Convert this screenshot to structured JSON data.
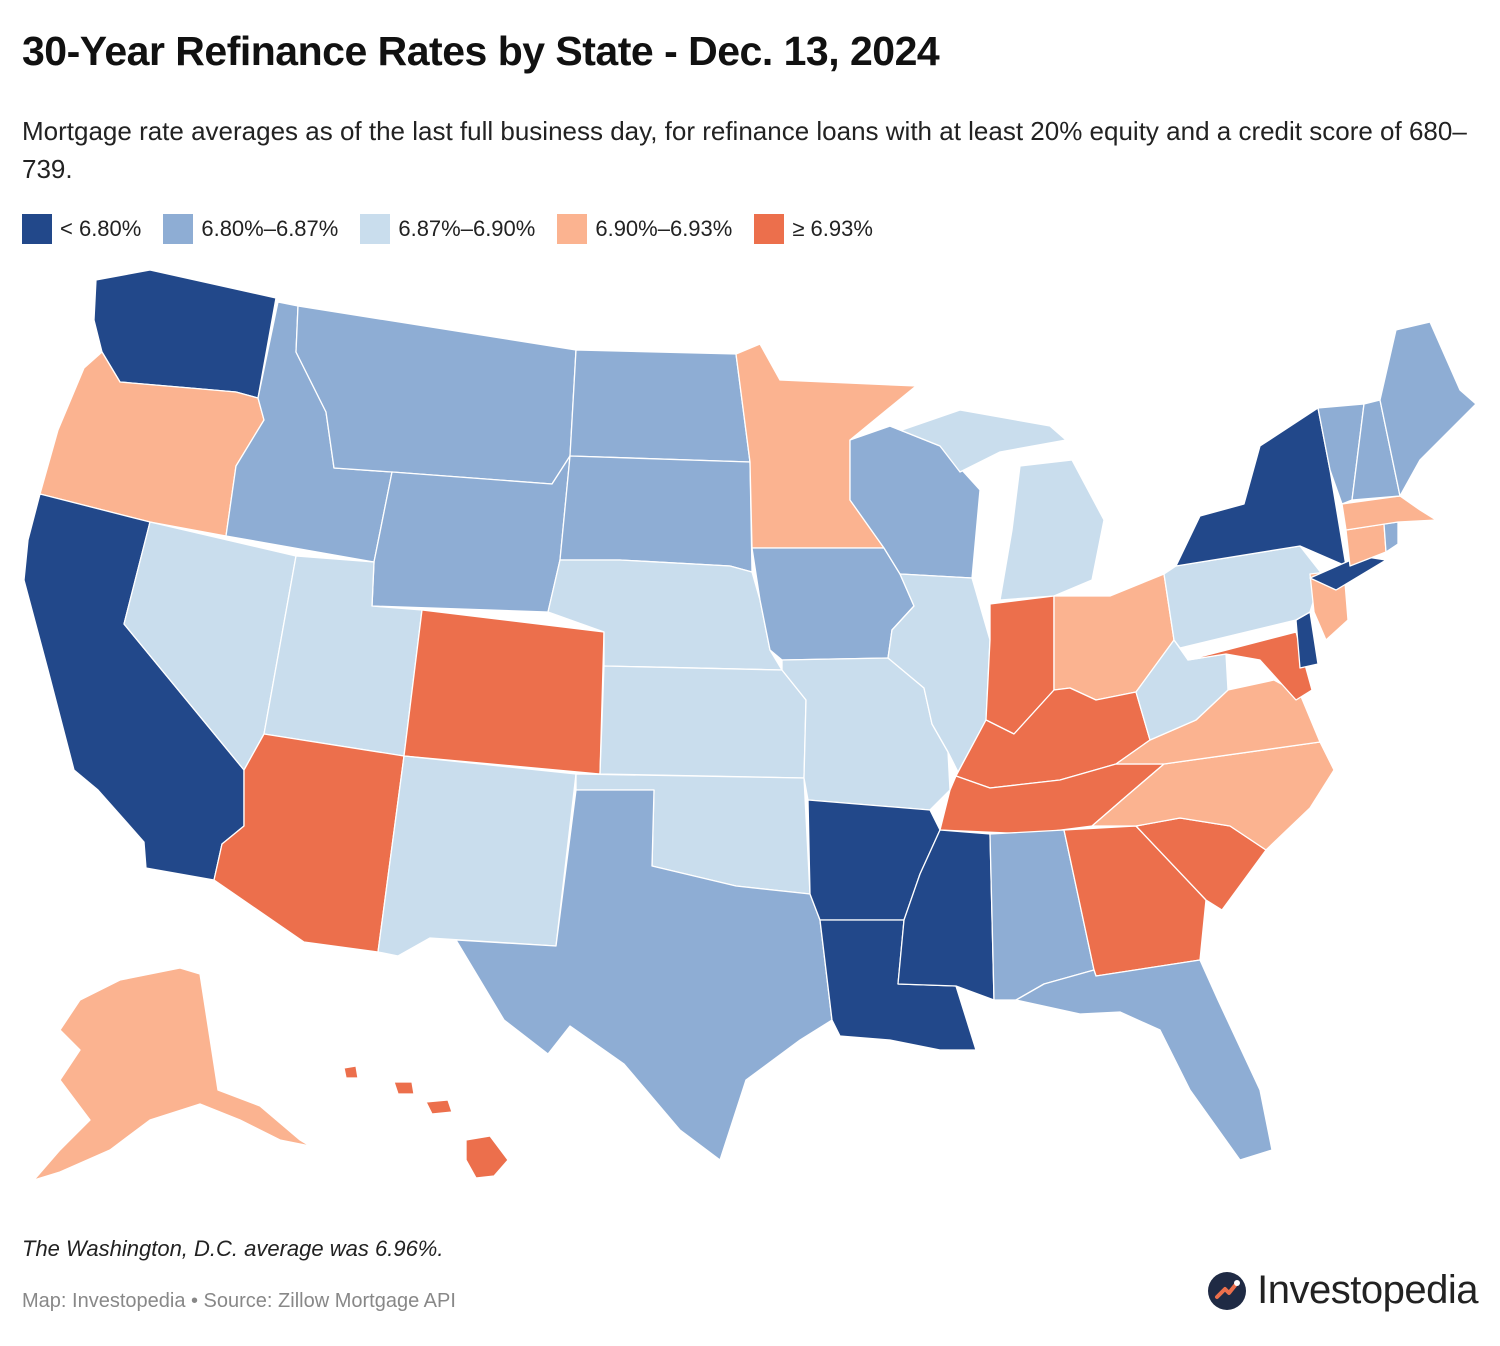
{
  "header": {
    "title": "30-Year Refinance Rates by State - Dec. 13, 2024",
    "subtitle": "Mortgage rate averages as of the last full business day, for refinance loans with at least 20% equity and a credit score of 680–739."
  },
  "legend": [
    {
      "label": "< 6.80%",
      "color": "#22488a"
    },
    {
      "label": "6.80%–6.87%",
      "color": "#8eadd4"
    },
    {
      "label": "6.87%–6.90%",
      "color": "#c9dded"
    },
    {
      "label": "6.90%–6.93%",
      "color": "#fbb390"
    },
    {
      "label": "≥ 6.93%",
      "color": "#ec6f4c"
    }
  ],
  "footnote": "The Washington, D.C. average was 6.96%.",
  "credit": "Map: Investopedia • Source: Zillow Mortgage API",
  "brand": {
    "name": "Investopedia",
    "icon": "investopedia-logo-icon"
  },
  "map_data": {
    "type": "choropleth",
    "region": "United States",
    "states": [
      {
        "id": "WA",
        "bin": 0
      },
      {
        "id": "OR",
        "bin": 3
      },
      {
        "id": "CA",
        "bin": 0
      },
      {
        "id": "NV",
        "bin": 2
      },
      {
        "id": "ID",
        "bin": 1
      },
      {
        "id": "MT",
        "bin": 1
      },
      {
        "id": "WY",
        "bin": 1
      },
      {
        "id": "UT",
        "bin": 2
      },
      {
        "id": "AZ",
        "bin": 4
      },
      {
        "id": "CO",
        "bin": 4
      },
      {
        "id": "NM",
        "bin": 2
      },
      {
        "id": "ND",
        "bin": 1
      },
      {
        "id": "SD",
        "bin": 1
      },
      {
        "id": "NE",
        "bin": 2
      },
      {
        "id": "KS",
        "bin": 2
      },
      {
        "id": "OK",
        "bin": 2
      },
      {
        "id": "TX",
        "bin": 1
      },
      {
        "id": "MN",
        "bin": 3
      },
      {
        "id": "IA",
        "bin": 1
      },
      {
        "id": "MO",
        "bin": 2
      },
      {
        "id": "AR",
        "bin": 0
      },
      {
        "id": "LA",
        "bin": 0
      },
      {
        "id": "WI",
        "bin": 1
      },
      {
        "id": "IL",
        "bin": 2
      },
      {
        "id": "MI",
        "bin": 2
      },
      {
        "id": "IN",
        "bin": 4
      },
      {
        "id": "OH",
        "bin": 3
      },
      {
        "id": "KY",
        "bin": 4
      },
      {
        "id": "TN",
        "bin": 4
      },
      {
        "id": "MS",
        "bin": 0
      },
      {
        "id": "AL",
        "bin": 1
      },
      {
        "id": "GA",
        "bin": 4
      },
      {
        "id": "FL",
        "bin": 1
      },
      {
        "id": "SC",
        "bin": 4
      },
      {
        "id": "NC",
        "bin": 3
      },
      {
        "id": "VA",
        "bin": 3
      },
      {
        "id": "WV",
        "bin": 2
      },
      {
        "id": "MD",
        "bin": 4
      },
      {
        "id": "DE",
        "bin": 0
      },
      {
        "id": "PA",
        "bin": 2
      },
      {
        "id": "NJ",
        "bin": 3
      },
      {
        "id": "NY",
        "bin": 0
      },
      {
        "id": "CT",
        "bin": 3
      },
      {
        "id": "RI",
        "bin": 1
      },
      {
        "id": "MA",
        "bin": 3
      },
      {
        "id": "VT",
        "bin": 1
      },
      {
        "id": "NH",
        "bin": 1
      },
      {
        "id": "ME",
        "bin": 1
      },
      {
        "id": "AK",
        "bin": 3
      },
      {
        "id": "HI",
        "bin": 4
      }
    ]
  }
}
